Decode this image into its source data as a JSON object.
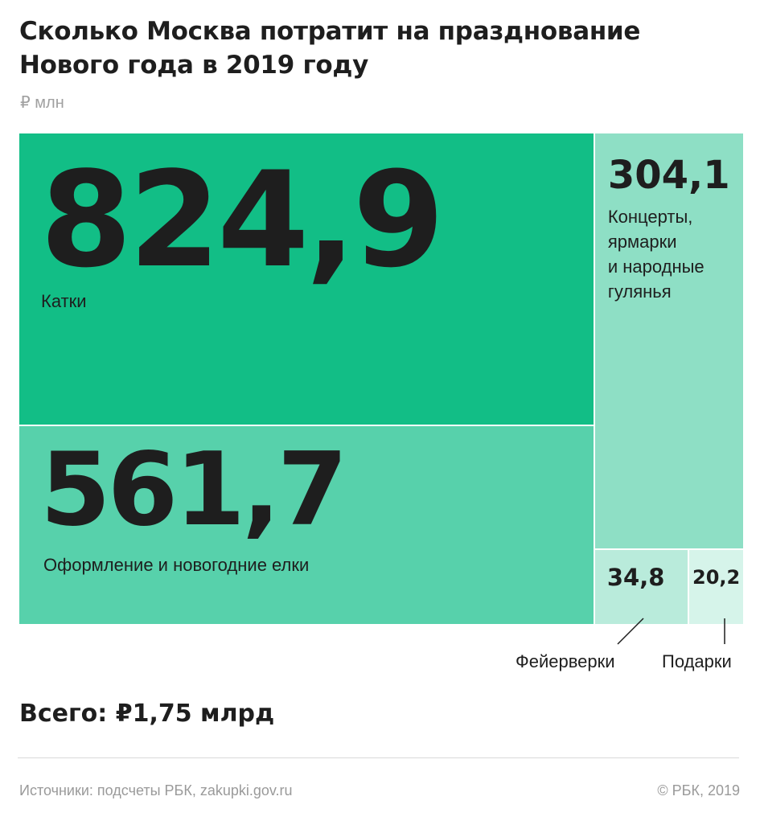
{
  "header": {
    "title": "Сколько Москва потратит на празднование Нового года в 2019 году",
    "unit": "₽ млн"
  },
  "chart_data": {
    "type": "treemap",
    "unit": "₽ млн",
    "items": [
      {
        "value": 824.9,
        "value_label": "824,9",
        "label": "Катки",
        "color": "#12be86"
      },
      {
        "value": 561.7,
        "value_label": "561,7",
        "label": "Оформление и новогодние елки",
        "color": "#57d1ab"
      },
      {
        "value": 304.1,
        "value_label": "304,1",
        "label": "Концерты,\nярмарки\nи народные\nгулянья",
        "color": "#8edfc5"
      },
      {
        "value": 34.8,
        "value_label": "34,8",
        "label": "Фейерверки",
        "color": "#b9ebdb"
      },
      {
        "value": 20.2,
        "value_label": "20,2",
        "label": "Подарки",
        "color": "#d6f4ea"
      }
    ]
  },
  "footer": {
    "total": "Всего: ₽1,75 млрд",
    "source": "Источники: подсчеты РБК, zakupki.gov.ru",
    "copyright": "© РБК, 2019"
  }
}
